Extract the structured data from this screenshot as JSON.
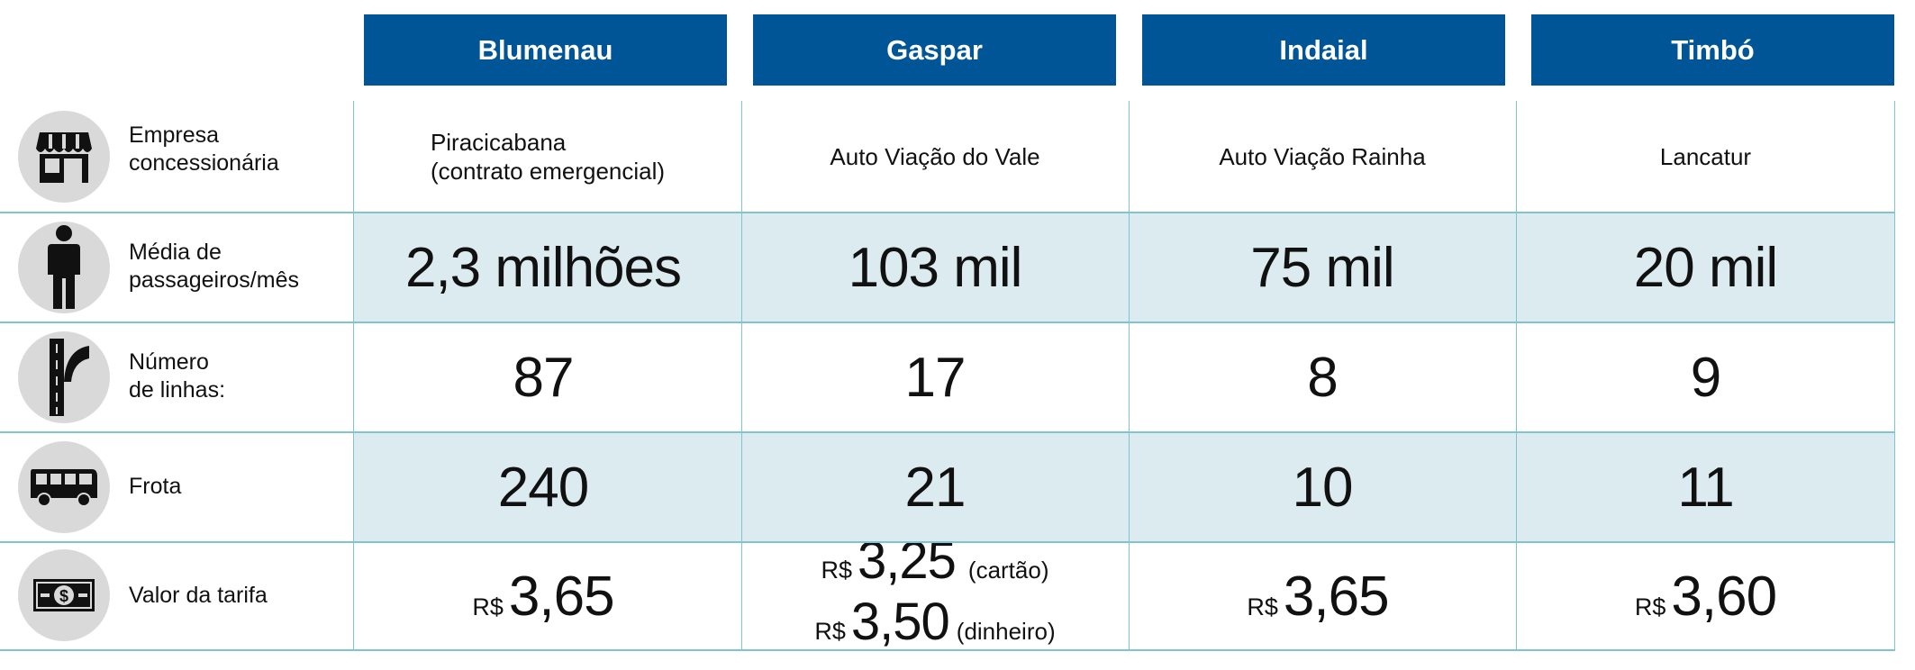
{
  "cities": [
    "Blumenau",
    "Gaspar",
    "Indaial",
    "Timbó"
  ],
  "rows": {
    "empresa": {
      "label": "Empresa\nconcessionária",
      "icon": "storefront-icon",
      "values": [
        "Piracicabana\n(contrato emergencial)",
        "Auto Viação do Vale",
        "Auto Viação Rainha",
        "Lancatur"
      ]
    },
    "passageiros": {
      "label": "Média de\npassageiros/mês",
      "icon": "person-icon",
      "values": [
        "2,3 milhões",
        "103 mil",
        "75 mil",
        "20 mil"
      ]
    },
    "linhas": {
      "label": "Número\nde linhas:",
      "icon": "road-fork-icon",
      "values": [
        "87",
        "17",
        "8",
        "9"
      ]
    },
    "frota": {
      "label": "Frota",
      "icon": "bus-icon",
      "values": [
        "240",
        "21",
        "10",
        "11"
      ]
    },
    "tarifa": {
      "label": "Valor da tarifa",
      "icon": "banknote-icon",
      "currency": "R$",
      "blumenau": "3,65",
      "gaspar_card": "3,25",
      "gaspar_card_note": "(cartão)",
      "gaspar_cash": "3,50",
      "gaspar_cash_note": "(dinheiro)",
      "indaial": "3,65",
      "timbo": "3,60"
    }
  },
  "colors": {
    "header_blue": "#005596",
    "row_shade": "#dcebf0",
    "grid_line": "#7fc4cf",
    "icon_circle": "#d9d9d9"
  }
}
